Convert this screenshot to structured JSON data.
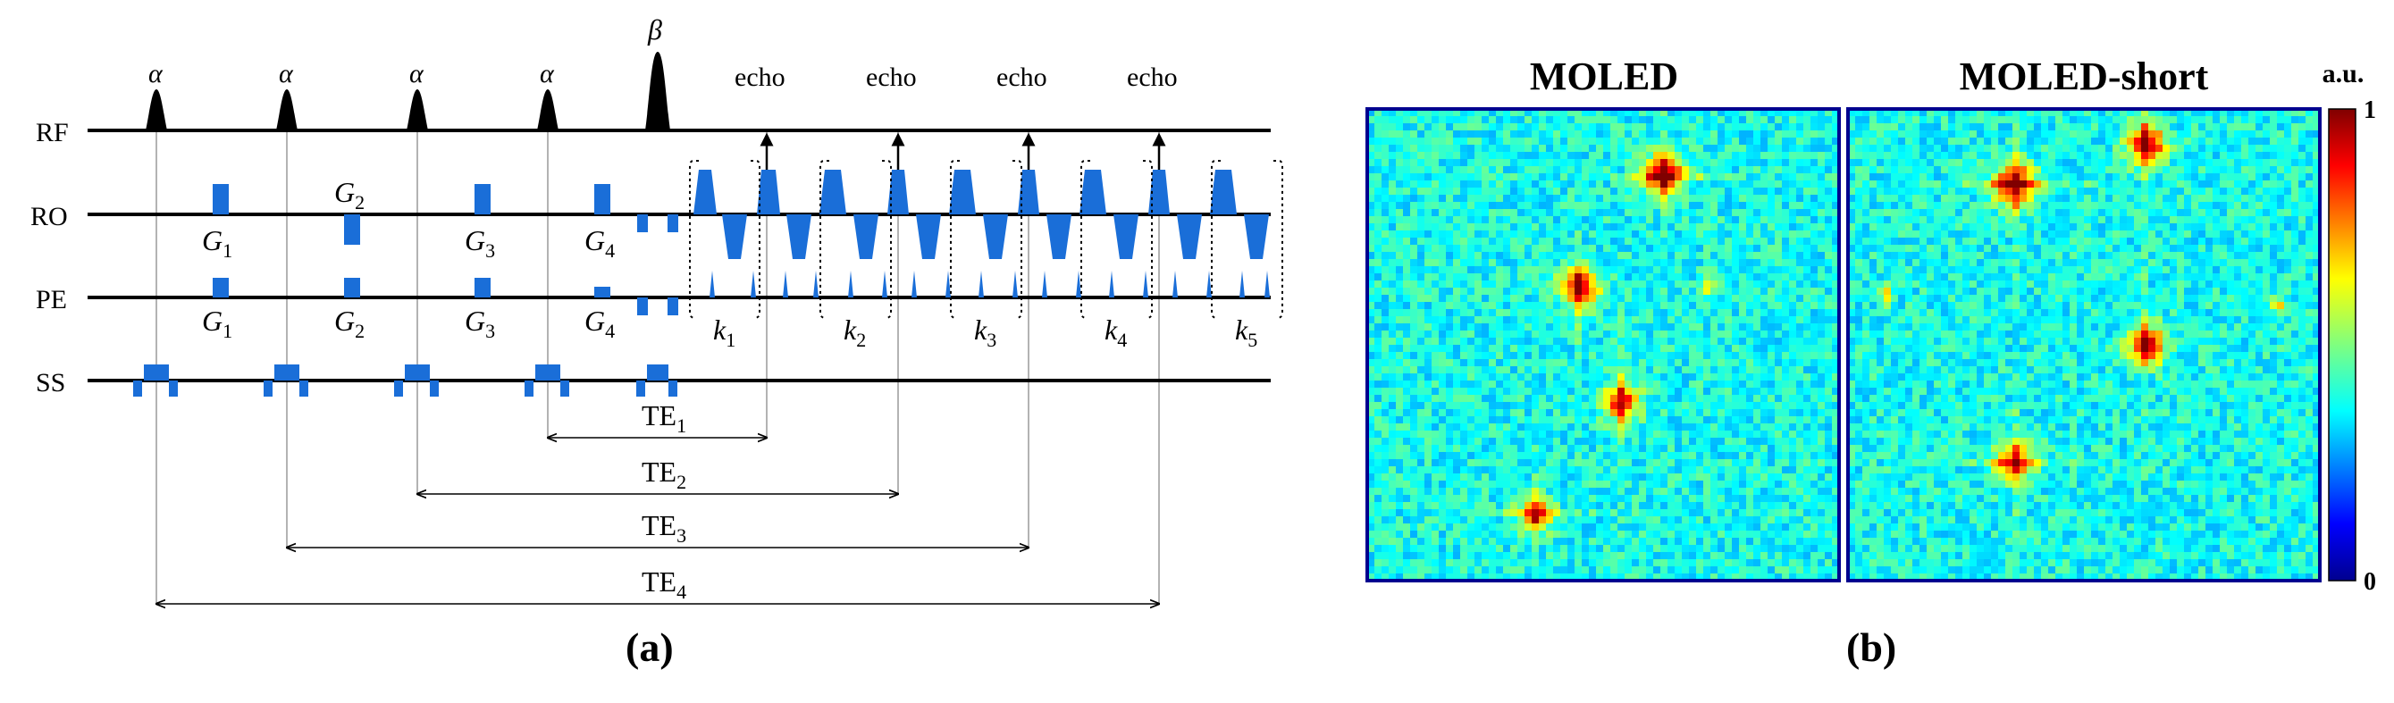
{
  "panel_a": {
    "caption": "(a)",
    "row_labels": {
      "rf": "RF",
      "ro": "RO",
      "pe": "PE",
      "ss": "SS"
    },
    "pulse_labels": {
      "alpha": "α",
      "beta": "β"
    },
    "echo_label": "echo",
    "ro_gradients": [
      "G",
      "G",
      "G",
      "G"
    ],
    "ro_gradient_subs": [
      "1",
      "2",
      "3",
      "4"
    ],
    "pe_gradients": [
      "G",
      "G",
      "G",
      "G"
    ],
    "pe_gradient_subs": [
      "1",
      "2",
      "3",
      "4"
    ],
    "k_labels": [
      "k",
      "k",
      "k",
      "k",
      "k"
    ],
    "k_subs": [
      "1",
      "2",
      "3",
      "4",
      "5"
    ],
    "te_labels": [
      "TE",
      "TE",
      "TE",
      "TE"
    ],
    "te_subs": [
      "1",
      "2",
      "3",
      "4"
    ],
    "colors": {
      "gradient": "#1a6ed8",
      "line": "#000000",
      "guide": "#9a9a9a"
    }
  },
  "panel_b": {
    "caption": "(b)",
    "map_titles": [
      "MOLED",
      "MOLED-short"
    ],
    "colorbar": {
      "unit": "a.u.",
      "max_label": "1",
      "min_label": "0"
    },
    "colormap": "jet"
  }
}
